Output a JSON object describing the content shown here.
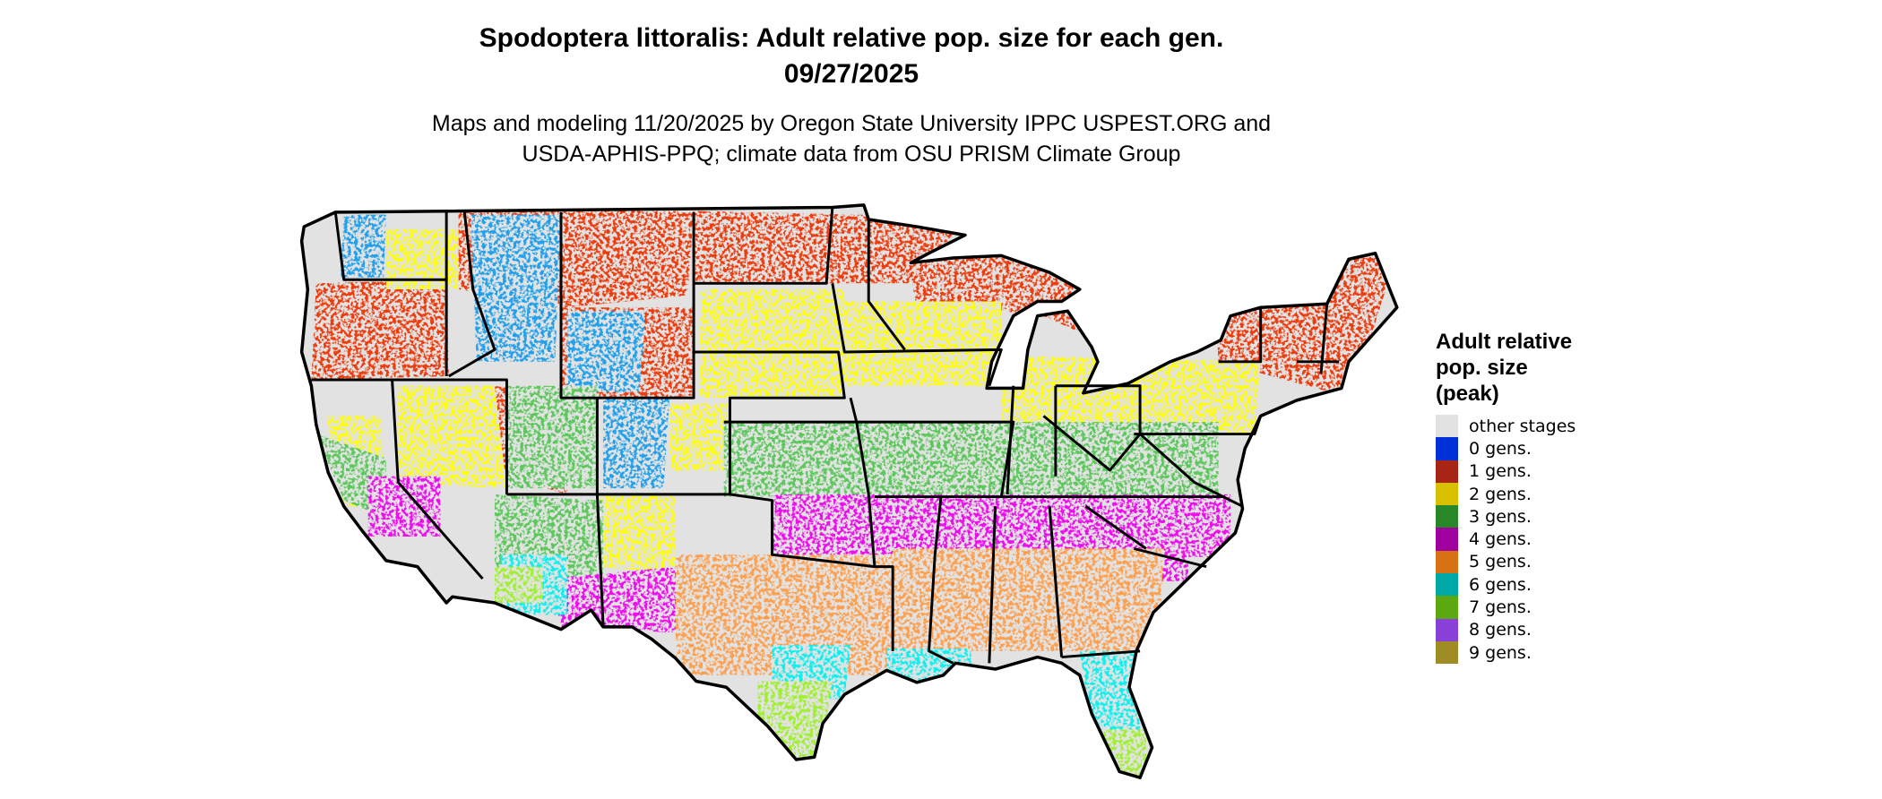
{
  "header": {
    "title": "Spodoptera littoralis: Adult relative pop. size for each gen.",
    "date": "09/27/2025",
    "subtitle_line1": "Maps and modeling 11/20/2025 by Oregon State University IPPC USPEST.ORG and",
    "subtitle_line2": "USDA-APHIS-PPQ; climate data from OSU PRISM Climate Group"
  },
  "legend": {
    "title_line1": "Adult relative",
    "title_line2": "pop. size",
    "title_line3": "(peak)",
    "items": [
      {
        "label": "other stages",
        "color": "#e2e2e2"
      },
      {
        "label": "0 gens.",
        "color": "#0030d8"
      },
      {
        "label": "1 gens.",
        "color": "#a82414"
      },
      {
        "label": "2 gens.",
        "color": "#d8c000"
      },
      {
        "label": "3 gens.",
        "color": "#288828"
      },
      {
        "label": "4 gens.",
        "color": "#a000a0"
      },
      {
        "label": "5 gens.",
        "color": "#d87014"
      },
      {
        "label": "6 gens.",
        "color": "#00a8a8"
      },
      {
        "label": "7 gens.",
        "color": "#5ca810"
      },
      {
        "label": "8 gens.",
        "color": "#8840d8"
      },
      {
        "label": "9 gens.",
        "color": "#a08c24"
      }
    ]
  },
  "map_colors": {
    "background": "#e2e2e2",
    "gen1": "#ee3c10",
    "gen0_light": "#20a0ec",
    "gen2": "#ffff00",
    "gen3": "#5cc85c",
    "gen4": "#ee10ee",
    "gen5": "#ffa050",
    "gen6": "#10f0f0",
    "gen7": "#a0f030",
    "gen8": "#8040ff",
    "border": "#000000"
  }
}
